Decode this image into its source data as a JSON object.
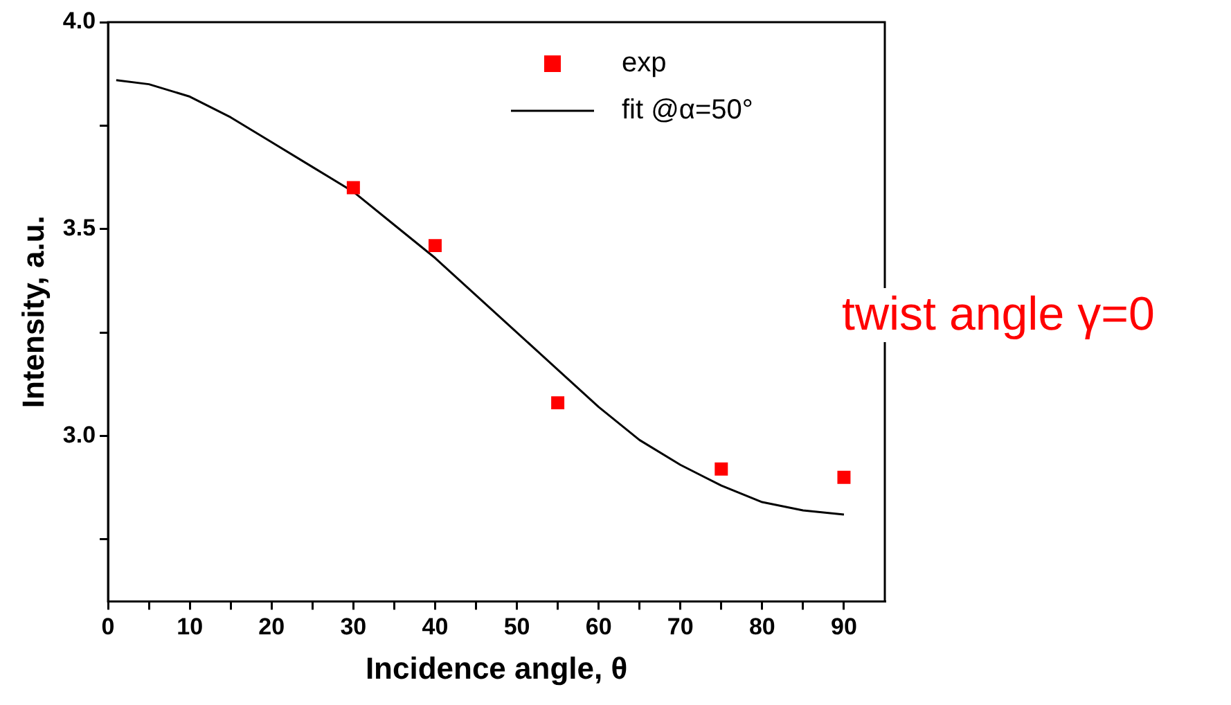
{
  "chart_data": {
    "type": "scatter",
    "xlabel": "Incidence angle, θ",
    "ylabel": "Intensity, a.u.",
    "annotations": [
      "twist angle γ=0"
    ],
    "xlim": [
      0,
      95
    ],
    "ylim": [
      2.6,
      4.0
    ],
    "xticks": [
      0,
      {
        "value": 5,
        "label": null
      },
      10,
      {
        "value": 15,
        "label": null
      },
      20,
      {
        "value": 25,
        "label": null
      },
      30,
      {
        "value": 35,
        "label": null
      },
      40,
      {
        "value": 45,
        "label": null
      },
      50,
      {
        "value": 55,
        "label": null
      },
      60,
      {
        "value": 65,
        "label": null
      },
      70,
      {
        "value": 75,
        "label": null
      },
      80,
      {
        "value": 85,
        "label": null
      },
      90
    ],
    "yticks": [
      {
        "value": 2.75,
        "label": null
      },
      {
        "value": 3.0,
        "label": "3.0"
      },
      {
        "value": 3.25,
        "label": null
      },
      {
        "value": 3.5,
        "label": "3.5"
      },
      {
        "value": 3.75,
        "label": null
      },
      {
        "value": 4.0,
        "label": "4.0"
      }
    ],
    "grid": false,
    "legend": "top right",
    "series": [
      {
        "name": "exp",
        "marker": "square",
        "color": "#ff0000",
        "x": [
          30,
          40,
          55,
          75,
          90
        ],
        "values": [
          3.6,
          3.46,
          3.08,
          2.92,
          2.9
        ]
      },
      {
        "name": "fit @α=50°",
        "type": "line",
        "marker": "none",
        "line_style": "solid",
        "color": "#000000",
        "x": [
          1,
          5,
          10,
          15,
          20,
          25,
          30,
          35,
          40,
          45,
          50,
          55,
          60,
          65,
          70,
          75,
          80,
          85,
          90
        ],
        "values": [
          3.86,
          3.85,
          3.82,
          3.77,
          3.71,
          3.65,
          3.59,
          3.51,
          3.43,
          3.34,
          3.25,
          3.16,
          3.07,
          2.99,
          2.93,
          2.88,
          2.84,
          2.82,
          2.81
        ]
      }
    ]
  }
}
